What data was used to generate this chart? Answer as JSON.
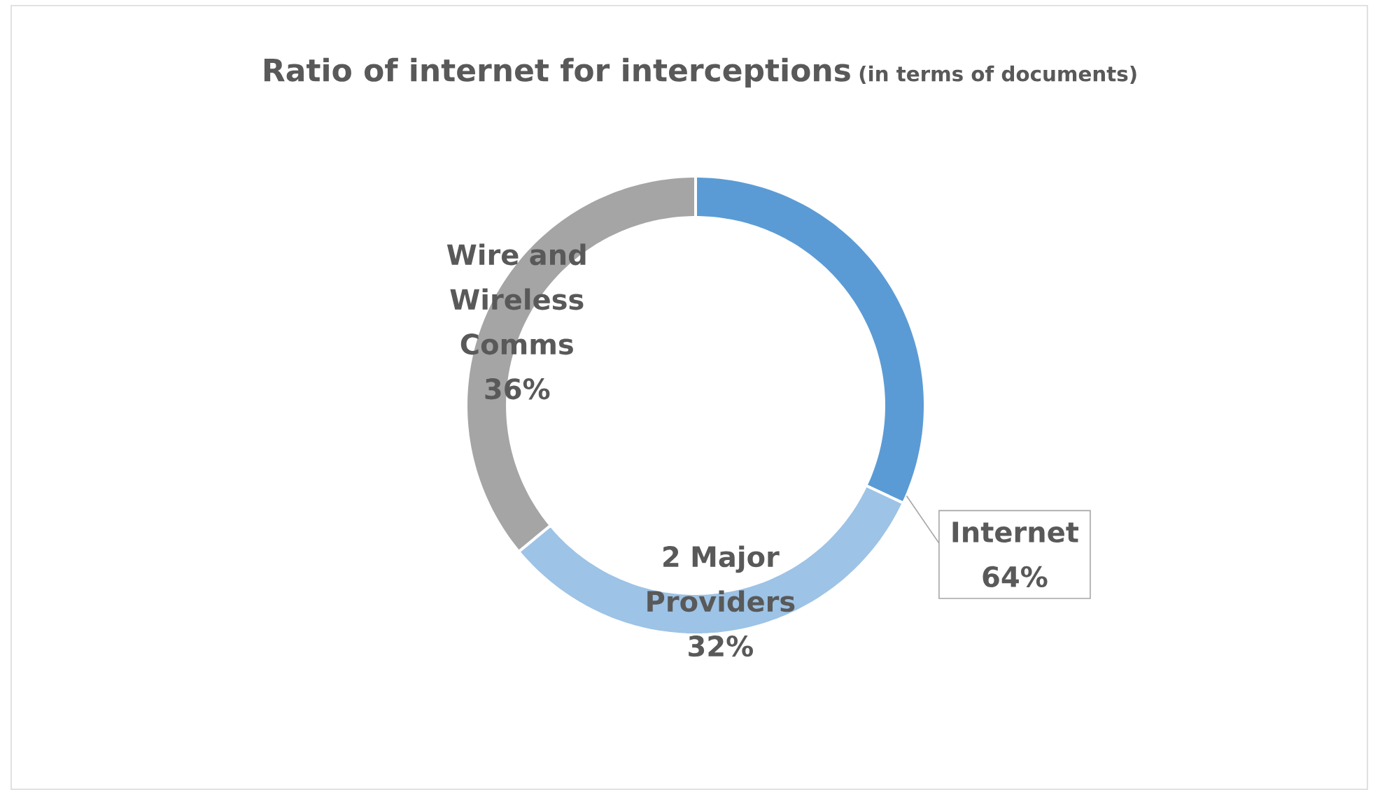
{
  "chart_data": {
    "type": "donut",
    "title": "Ratio of internet for interceptions",
    "subtitle": "(in terms of documents)",
    "categories": [
      null,
      "2 Major Providers",
      "Wire and Wireless Comms"
    ],
    "values": [
      32,
      32,
      36
    ],
    "value_labels": [
      null,
      "32%",
      "36%"
    ],
    "annotations": [
      "Internet",
      "64%"
    ],
    "colors": [
      "#5b9bd5",
      "#9dc3e6",
      "#a5a5a5"
    ]
  }
}
